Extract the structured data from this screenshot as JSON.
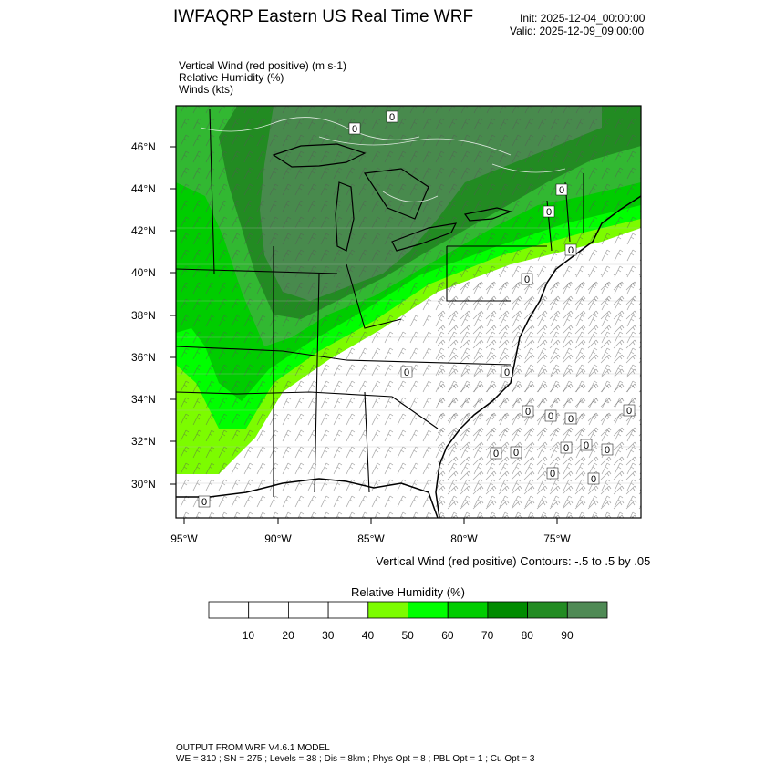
{
  "header": {
    "title": "IWFAQRP Eastern US Real Time WRF",
    "init": "Init: 2025-12-04_00:00:00",
    "valid": "Valid: 2025-12-09_09:00:00"
  },
  "fields": [
    "Vertical Wind (red positive)   (m s-1)",
    "Relative Humidity   (%)",
    "Winds   (kts)"
  ],
  "map": {
    "lat_labels": [
      "46°N",
      "44°N",
      "42°N",
      "40°N",
      "38°N",
      "36°N",
      "34°N",
      "32°N",
      "30°N"
    ],
    "lon_labels": [
      "95°W",
      "90°W",
      "85°W",
      "80°W",
      "75°W"
    ],
    "contour_labels": [
      "0",
      "0",
      "0",
      "0",
      "0",
      "0",
      "0",
      "0",
      "0",
      "0",
      "0",
      "0",
      "0",
      "0",
      "0",
      "0",
      "0",
      "0",
      "0",
      "0"
    ],
    "contour_note": "Vertical Wind (red positive) Contours: -.5 to .5 by .05"
  },
  "colorbar": {
    "title": "Relative Humidity   (%)",
    "labels": [
      "10",
      "20",
      "30",
      "40",
      "50",
      "60",
      "70",
      "80",
      "90"
    ],
    "colors": [
      "#ffffff",
      "#ffffff",
      "#ffffff",
      "#ffffff",
      "#7cfc00",
      "#00ff00",
      "#00cd00",
      "#008b00",
      "#228b22",
      "#4f8a55"
    ]
  },
  "footer": {
    "line1": "OUTPUT FROM WRF V4.6.1 MODEL",
    "line2": "WE = 310 ; SN = 275 ; Levels = 38 ; Dis = 8km ; Phys Opt = 8 ; PBL Opt = 1 ; Cu Opt = 3"
  }
}
